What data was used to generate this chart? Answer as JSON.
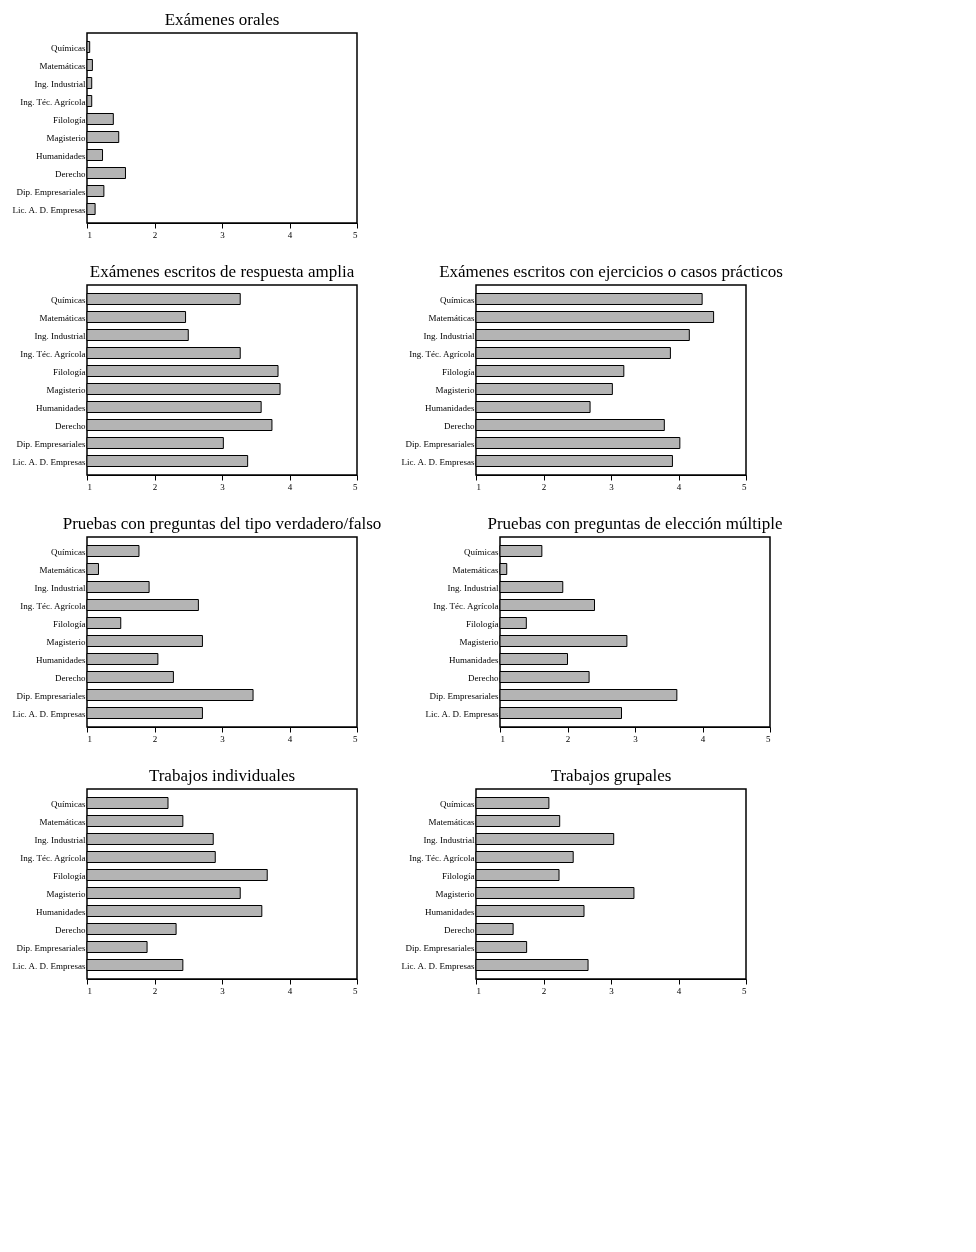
{
  "chart_data": [
    {
      "type": "bar",
      "orientation": "horizontal",
      "title": "Exámenes orales",
      "categories": [
        "Químicas",
        "Matemáticas",
        "Ing. Industrial",
        "Ing. Téc. Agrícola",
        "Filología",
        "Magisterio",
        "Humanidades",
        "Derecho",
        "Dip. Empresariales",
        "Lic. A. D. Empresas"
      ],
      "values": [
        1.04,
        1.08,
        1.07,
        1.07,
        1.39,
        1.47,
        1.23,
        1.57,
        1.25,
        1.12
      ],
      "color": "#b4b4b4",
      "xlim": [
        1,
        5
      ],
      "xticks": [
        1,
        2,
        3,
        4,
        5
      ],
      "grid": false
    },
    {
      "type": "bar",
      "orientation": "horizontal",
      "title": "Exámenes escritos de respuesta amplia",
      "categories": [
        "Químicas",
        "Matemáticas",
        "Ing. Industrial",
        "Ing. Téc. Agrícola",
        "Filología",
        "Magisterio",
        "Humanidades",
        "Derecho",
        "Dip. Empresariales",
        "Lic. A. D. Empresas"
      ],
      "values": [
        3.27,
        2.46,
        2.5,
        3.27,
        3.83,
        3.86,
        3.58,
        3.74,
        3.02,
        3.38
      ],
      "color": "#b4b4b4",
      "xlim": [
        1,
        5
      ],
      "xticks": [
        1,
        2,
        3,
        4,
        5
      ],
      "grid": false
    },
    {
      "type": "bar",
      "orientation": "horizontal",
      "title": "Exámenes escritos con ejercicios o casos prácticos",
      "categories": [
        "Químicas",
        "Matemáticas",
        "Ing. Industrial",
        "Ing. Téc. Agrícola",
        "Filología",
        "Magisterio",
        "Humanidades",
        "Derecho",
        "Dip. Empresariales",
        "Lic. A. D. Empresas"
      ],
      "values": [
        4.35,
        4.52,
        4.16,
        3.88,
        3.19,
        3.02,
        2.69,
        3.79,
        4.02,
        3.91
      ],
      "color": "#b4b4b4",
      "xlim": [
        1,
        5
      ],
      "xticks": [
        1,
        2,
        3,
        4,
        5
      ],
      "grid": false
    },
    {
      "type": "bar",
      "orientation": "horizontal",
      "title": "Pruebas con preguntas del tipo verdadero/falso",
      "categories": [
        "Químicas",
        "Matemáticas",
        "Ing. Industrial",
        "Ing. Téc. Agrícola",
        "Filología",
        "Magisterio",
        "Humanidades",
        "Derecho",
        "Dip. Empresariales",
        "Lic. A. D. Empresas"
      ],
      "values": [
        1.77,
        1.17,
        1.92,
        2.65,
        1.5,
        2.71,
        2.05,
        2.28,
        3.46,
        2.71
      ],
      "color": "#b4b4b4",
      "xlim": [
        1,
        5
      ],
      "xticks": [
        1,
        2,
        3,
        4,
        5
      ],
      "grid": false
    },
    {
      "type": "bar",
      "orientation": "horizontal",
      "title": "Pruebas con preguntas de elección múltiple",
      "categories": [
        "Químicas",
        "Matemáticas",
        "Ing. Industrial",
        "Ing. Téc. Agrícola",
        "Filología",
        "Magisterio",
        "Humanidades",
        "Derecho",
        "Dip. Empresariales",
        "Lic. A. D. Empresas"
      ],
      "values": [
        1.62,
        1.1,
        1.93,
        2.4,
        1.39,
        2.88,
        2.0,
        2.32,
        3.62,
        2.8
      ],
      "color": "#b4b4b4",
      "xlim": [
        1,
        5
      ],
      "xticks": [
        1,
        2,
        3,
        4,
        5
      ],
      "grid": false
    },
    {
      "type": "bar",
      "orientation": "horizontal",
      "title": "Trabajos individuales",
      "categories": [
        "Químicas",
        "Matemáticas",
        "Ing. Industrial",
        "Ing. Téc. Agrícola",
        "Filología",
        "Magisterio",
        "Humanidades",
        "Derecho",
        "Dip. Empresariales",
        "Lic. A. D. Empresas"
      ],
      "values": [
        2.2,
        2.42,
        2.87,
        2.9,
        3.67,
        3.27,
        3.59,
        2.32,
        1.89,
        2.42
      ],
      "color": "#b4b4b4",
      "xlim": [
        1,
        5
      ],
      "xticks": [
        1,
        2,
        3,
        4,
        5
      ],
      "grid": false
    },
    {
      "type": "bar",
      "orientation": "horizontal",
      "title": "Trabajos grupales",
      "categories": [
        "Químicas",
        "Matemáticas",
        "Ing. Industrial",
        "Ing. Téc. Agrícola",
        "Filología",
        "Magisterio",
        "Humanidades",
        "Derecho",
        "Dip. Empresariales",
        "Lic. A. D. Empresas"
      ],
      "values": [
        2.08,
        2.24,
        3.04,
        2.44,
        2.23,
        3.34,
        2.6,
        1.55,
        1.75,
        2.66
      ],
      "color": "#b4b4b4",
      "xlim": [
        1,
        5
      ],
      "xticks": [
        1,
        2,
        3,
        4,
        5
      ],
      "grid": false
    }
  ]
}
